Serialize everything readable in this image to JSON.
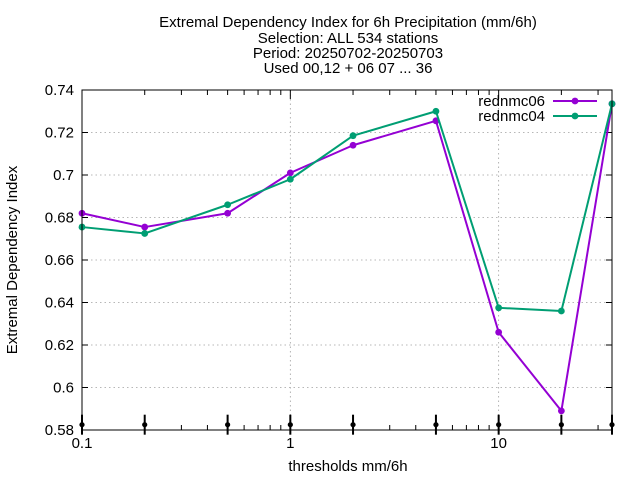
{
  "chart_data": {
    "type": "line",
    "title": [
      "Extremal Dependency Index  for 6h Precipitation (mm/6h)",
      "Selection: ALL    534 stations",
      "Period: 20250702-20250703",
      "Used 00,12 + 06 07 ... 36"
    ],
    "xlabel": "thresholds mm/6h",
    "ylabel": "Extremal Dependency Index",
    "x_scale": "log",
    "xlim": [
      0.1,
      35
    ],
    "ylim": [
      0.58,
      0.74
    ],
    "x_ticks": [
      0.1,
      1,
      10
    ],
    "x_tick_labels": [
      "0.1",
      "1",
      "10"
    ],
    "y_ticks": [
      0.58,
      0.6,
      0.62,
      0.64,
      0.66,
      0.68,
      0.7,
      0.72,
      0.74
    ],
    "y_tick_labels": [
      "0.58",
      "0.6",
      "0.62",
      "0.64",
      "0.66",
      "0.68",
      "0.7",
      "0.72",
      "0.74"
    ],
    "grid": true,
    "legend_position": "top-right",
    "x": [
      0.1,
      0.2,
      0.5,
      1,
      2,
      5,
      10,
      20,
      35
    ],
    "series": [
      {
        "name": "rednmc06",
        "color": "#9400d3",
        "values": [
          0.682,
          0.6755,
          0.682,
          0.701,
          0.714,
          0.7255,
          0.626,
          0.589,
          0.7335
        ]
      },
      {
        "name": "rednmc04",
        "color": "#009e73",
        "values": [
          0.6755,
          0.6725,
          0.686,
          0.698,
          0.7185,
          0.73,
          0.6375,
          0.636,
          0.7335
        ]
      }
    ],
    "sample_markers_x": [
      0.1,
      0.2,
      0.5,
      1,
      2,
      5,
      10,
      20,
      35
    ]
  }
}
